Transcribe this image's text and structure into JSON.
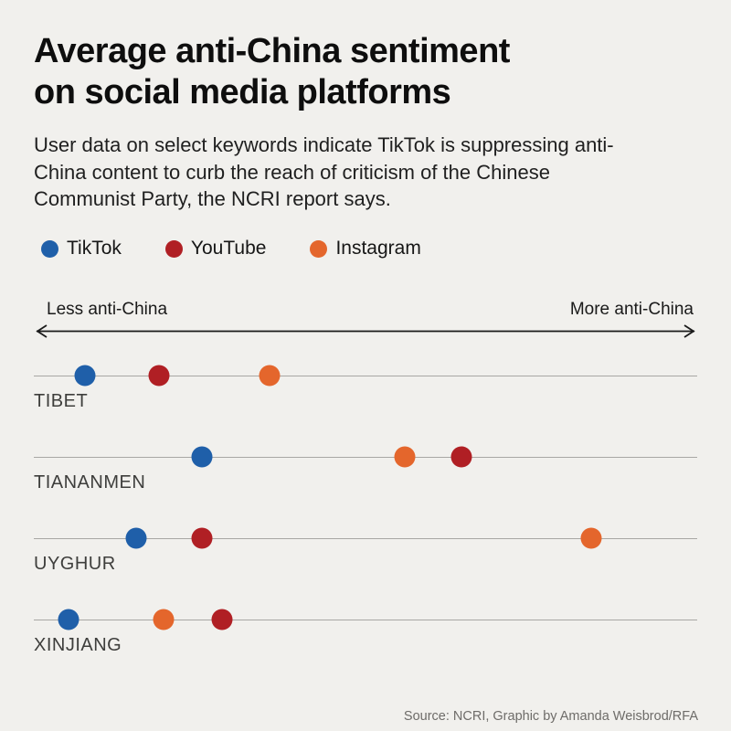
{
  "page": {
    "background": "#f1f0ed"
  },
  "title": {
    "line1": "Average anti-China sentiment",
    "line2": "on social media platforms",
    "full": "Average anti-China sentiment on social media platforms"
  },
  "subtitle": "User data on select keywords indicate TikTok is suppressing anti-China content to curb the reach of criticism of the Chinese Communist Party, the NCRI report says.",
  "axis": {
    "left_label": "Less anti-China",
    "right_label": "More anti-China"
  },
  "source": "Source: NCRI, Graphic by Amanda Weisbrod/RFA",
  "colors": {
    "tiktok": "#1f5fa9",
    "youtube": "#b01f24",
    "instagram": "#e4662c",
    "row_line": "#a8a7a4",
    "background": "#f1f0ed"
  },
  "chart_data": {
    "type": "scatter",
    "title": "Average anti-China sentiment on social media platforms",
    "subtitle": "User data on select keywords indicate TikTok is suppressing anti-China content to curb the reach of criticism of the Chinese Communist Party, the NCRI report says.",
    "xlabel_left": "Less anti-China",
    "xlabel_right": "More anti-China",
    "x_axis": {
      "range": [
        0,
        100
      ],
      "note": "unlabeled relative scale, positions estimated from pixels",
      "ticks": "none",
      "grid": false
    },
    "legend_position": "top-left",
    "categories": [
      "TIBET",
      "TIANANMEN",
      "UYGHUR",
      "XINJIANG"
    ],
    "series": [
      {
        "name": "TikTok",
        "color": "#1f5fa9",
        "values": [
          7.7,
          25.4,
          15.4,
          5.2
        ]
      },
      {
        "name": "YouTube",
        "color": "#b01f24",
        "values": [
          18.9,
          64.5,
          25.3,
          28.4
        ]
      },
      {
        "name": "Instagram",
        "color": "#e4662c",
        "values": [
          35.5,
          55.9,
          84.0,
          19.5
        ]
      }
    ]
  }
}
